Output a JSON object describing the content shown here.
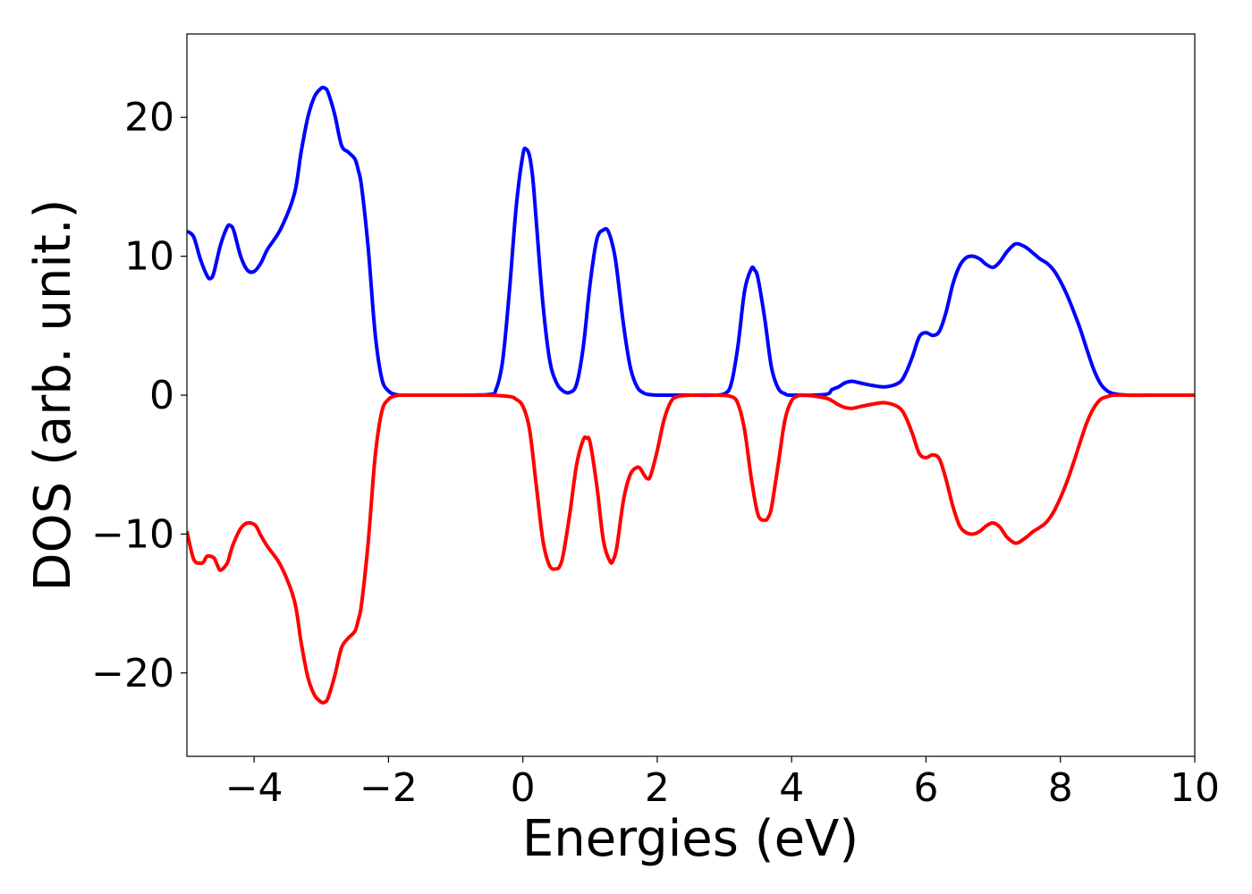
{
  "chart_data": {
    "type": "line",
    "title": "",
    "xlabel": "Energies (eV)",
    "ylabel": "DOS (arb. unit.)",
    "xlim": [
      -5,
      10
    ],
    "ylim": [
      -26,
      26
    ],
    "grid": false,
    "legend": "none",
    "xticks": [
      -4,
      -2,
      0,
      2,
      4,
      6,
      8,
      10
    ],
    "xtick_labels": [
      "−4",
      "−2",
      "0",
      "2",
      "4",
      "6",
      "8",
      "10"
    ],
    "yticks": [
      -20,
      -10,
      0,
      10,
      20
    ],
    "ytick_labels": [
      "−20",
      "−10",
      "0",
      "10",
      "20"
    ],
    "series": [
      {
        "color": "#0000ff",
        "x": [
          -5,
          -4.9,
          -4.8,
          -4.7,
          -4.65,
          -4.6,
          -4.5,
          -4.4,
          -4.35,
          -4.3,
          -4.2,
          -4.1,
          -4.0,
          -3.9,
          -3.8,
          -3.6,
          -3.4,
          -3.3,
          -3.2,
          -3.1,
          -3.0,
          -2.95,
          -2.9,
          -2.8,
          -2.7,
          -2.6,
          -2.5,
          -2.45,
          -2.4,
          -2.3,
          -2.2,
          -2.1,
          -2.0,
          -1.9,
          -1.8,
          -1.5,
          -1.0,
          -0.5,
          -0.4,
          -0.3,
          -0.2,
          -0.1,
          0.0,
          0.05,
          0.1,
          0.15,
          0.2,
          0.3,
          0.4,
          0.5,
          0.6,
          0.7,
          0.8,
          0.9,
          1.0,
          1.1,
          1.2,
          1.27,
          1.35,
          1.4,
          1.5,
          1.6,
          1.7,
          1.8,
          1.9,
          2.0,
          2.2,
          2.5,
          2.8,
          3.0,
          3.1,
          3.2,
          3.3,
          3.4,
          3.45,
          3.5,
          3.6,
          3.7,
          3.8,
          3.9,
          4.0,
          4.5,
          4.6,
          4.7,
          4.8,
          4.9,
          5.0,
          5.2,
          5.4,
          5.6,
          5.7,
          5.8,
          5.9,
          6.0,
          6.1,
          6.2,
          6.3,
          6.4,
          6.5,
          6.6,
          6.7,
          6.8,
          6.9,
          7.0,
          7.1,
          7.2,
          7.3,
          7.35,
          7.4,
          7.5,
          7.6,
          7.7,
          7.8,
          7.9,
          8.0,
          8.1,
          8.2,
          8.3,
          8.4,
          8.5,
          8.6,
          8.7,
          8.8,
          9.0,
          9.5,
          10.0
        ],
        "y": [
          11.8,
          11.4,
          9.8,
          8.6,
          8.4,
          8.8,
          10.8,
          12.1,
          12.2,
          11.8,
          10.0,
          9.0,
          8.9,
          9.5,
          10.5,
          12.0,
          14.5,
          17.5,
          20.0,
          21.5,
          22.1,
          22.1,
          21.8,
          20.2,
          18.0,
          17.5,
          17.0,
          16.2,
          15.0,
          10.5,
          4.5,
          1.2,
          0.3,
          0.05,
          0.0,
          0.0,
          0.0,
          0.05,
          0.4,
          2.5,
          7.5,
          13.5,
          17.3,
          17.7,
          17.2,
          15.5,
          12.5,
          6.5,
          2.5,
          0.9,
          0.3,
          0.2,
          0.8,
          3.5,
          8.0,
          11.2,
          11.9,
          11.8,
          10.5,
          9.0,
          5.0,
          2.0,
          0.6,
          0.15,
          0.03,
          0.0,
          0.0,
          0.0,
          0.0,
          0.1,
          0.8,
          3.5,
          7.5,
          9.1,
          9.0,
          8.4,
          5.5,
          2.0,
          0.5,
          0.1,
          0.0,
          0.05,
          0.4,
          0.6,
          0.9,
          1.0,
          0.9,
          0.7,
          0.6,
          0.9,
          1.6,
          2.8,
          4.2,
          4.5,
          4.3,
          4.6,
          6.0,
          8.0,
          9.3,
          9.9,
          10.0,
          9.8,
          9.4,
          9.2,
          9.6,
          10.3,
          10.8,
          10.9,
          10.85,
          10.6,
          10.2,
          9.8,
          9.5,
          9.0,
          8.2,
          7.2,
          6.0,
          4.7,
          3.2,
          1.8,
          0.8,
          0.3,
          0.1,
          0.0,
          0.0,
          0.0
        ]
      },
      {
        "color": "#ff0000",
        "x": [
          -5,
          -4.9,
          -4.8,
          -4.75,
          -4.7,
          -4.6,
          -4.55,
          -4.5,
          -4.4,
          -4.35,
          -4.3,
          -4.2,
          -4.1,
          -4.0,
          -3.95,
          -3.9,
          -3.8,
          -3.6,
          -3.4,
          -3.3,
          -3.2,
          -3.1,
          -3.0,
          -2.95,
          -2.9,
          -2.8,
          -2.7,
          -2.6,
          -2.5,
          -2.45,
          -2.4,
          -2.3,
          -2.2,
          -2.1,
          -2.0,
          -1.9,
          -1.8,
          -1.5,
          -1.0,
          -0.5,
          -0.2,
          -0.1,
          0.0,
          0.1,
          0.2,
          0.3,
          0.4,
          0.5,
          0.55,
          0.6,
          0.7,
          0.8,
          0.9,
          0.95,
          1.0,
          1.1,
          1.2,
          1.3,
          1.35,
          1.4,
          1.5,
          1.6,
          1.7,
          1.75,
          1.8,
          1.85,
          1.9,
          2.0,
          2.1,
          2.2,
          2.3,
          2.5,
          2.9,
          3.1,
          3.2,
          3.3,
          3.4,
          3.5,
          3.6,
          3.65,
          3.7,
          3.8,
          3.9,
          4.0,
          4.1,
          4.2,
          4.5,
          4.6,
          4.7,
          4.8,
          4.9,
          5.0,
          5.2,
          5.4,
          5.6,
          5.7,
          5.8,
          5.9,
          6.0,
          6.1,
          6.2,
          6.3,
          6.4,
          6.5,
          6.6,
          6.7,
          6.8,
          6.9,
          7.0,
          7.1,
          7.2,
          7.3,
          7.35,
          7.4,
          7.5,
          7.6,
          7.7,
          7.8,
          7.9,
          8.0,
          8.1,
          8.2,
          8.3,
          8.4,
          8.5,
          8.6,
          8.7,
          8.8,
          9.0,
          9.5,
          10.0
        ],
        "y": [
          -9.8,
          -11.8,
          -12.1,
          -12.0,
          -11.6,
          -11.7,
          -12.2,
          -12.6,
          -12.1,
          -11.3,
          -10.6,
          -9.6,
          -9.2,
          -9.3,
          -9.6,
          -10.1,
          -10.9,
          -12.3,
          -14.8,
          -17.8,
          -20.3,
          -21.6,
          -22.1,
          -22.1,
          -21.8,
          -20.2,
          -18.2,
          -17.5,
          -17.0,
          -16.2,
          -15.0,
          -10.5,
          -4.5,
          -1.2,
          -0.3,
          -0.05,
          0.0,
          0.0,
          0.0,
          0.0,
          -0.1,
          -0.3,
          -0.8,
          -2.5,
          -6.5,
          -10.5,
          -12.3,
          -12.5,
          -12.3,
          -11.5,
          -8.5,
          -5.0,
          -3.2,
          -3.1,
          -3.4,
          -6.5,
          -10.5,
          -12.0,
          -11.8,
          -10.9,
          -7.5,
          -5.7,
          -5.2,
          -5.3,
          -5.7,
          -6.0,
          -5.8,
          -4.0,
          -1.8,
          -0.5,
          -0.1,
          0.0,
          0.0,
          -0.1,
          -0.6,
          -2.5,
          -6.0,
          -8.6,
          -9.0,
          -8.8,
          -8.1,
          -5.0,
          -1.8,
          -0.4,
          -0.05,
          0.0,
          -0.2,
          -0.4,
          -0.7,
          -0.9,
          -0.95,
          -0.85,
          -0.65,
          -0.55,
          -0.9,
          -1.6,
          -2.8,
          -4.2,
          -4.5,
          -4.3,
          -4.6,
          -6.1,
          -8.0,
          -9.4,
          -9.9,
          -10.0,
          -9.8,
          -9.4,
          -9.2,
          -9.5,
          -10.2,
          -10.6,
          -10.65,
          -10.55,
          -10.2,
          -9.8,
          -9.5,
          -9.1,
          -8.4,
          -7.4,
          -6.2,
          -4.8,
          -3.3,
          -1.9,
          -0.9,
          -0.3,
          -0.1,
          0.0,
          0.0,
          0.0,
          0.0
        ]
      }
    ]
  }
}
